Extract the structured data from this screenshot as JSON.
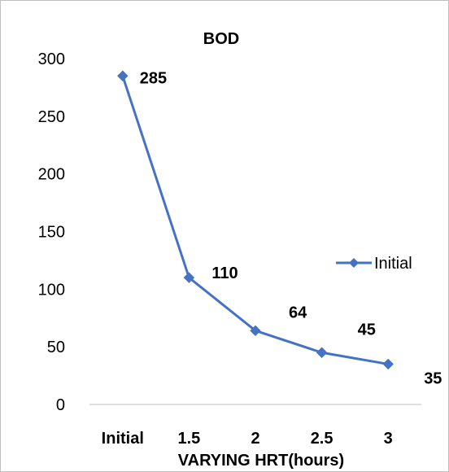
{
  "chart_data": {
    "type": "line",
    "title": "BOD",
    "xlabel": "VARYING HRT(hours)",
    "ylabel": "",
    "categories": [
      "Initial",
      "1.5",
      "2",
      "2.5",
      "3"
    ],
    "series": [
      {
        "name": "Initial",
        "values": [
          285,
          110,
          64,
          45,
          35
        ],
        "color": "#4472c4"
      }
    ],
    "data_labels": [
      "285",
      "110",
      "64",
      "45",
      "35"
    ],
    "ylim": [
      0,
      300
    ],
    "yticks": [
      0,
      50,
      100,
      150,
      200,
      250,
      300
    ],
    "grid": false,
    "legend": "right",
    "marker": "diamond"
  }
}
